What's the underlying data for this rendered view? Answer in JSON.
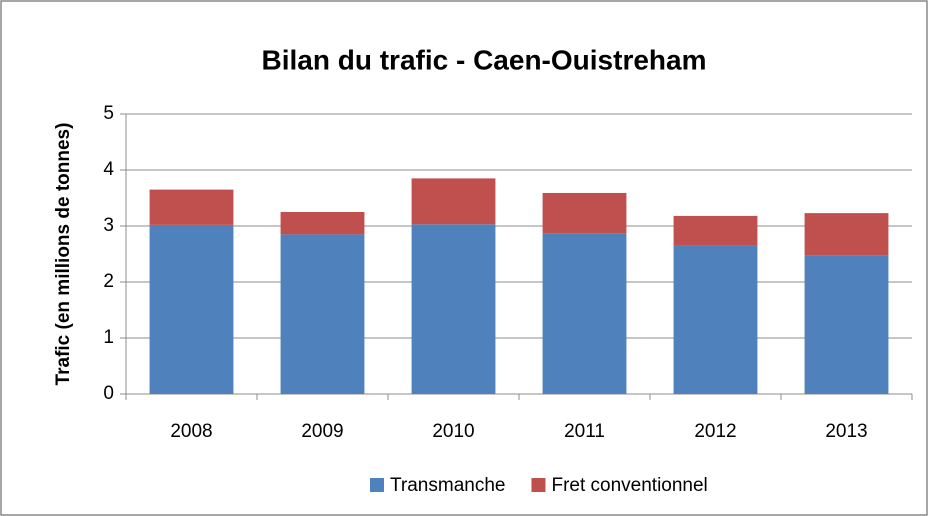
{
  "chart_data": {
    "type": "stacked_bar",
    "title": "Bilan du trafic - Caen-Ouistreham",
    "y_label": "Trafic (en millions de tonnes)",
    "categories": [
      "2008",
      "2009",
      "2010",
      "2011",
      "2012",
      "2013"
    ],
    "series": [
      {
        "name": "Transmanche",
        "color": "#4f81bd",
        "values": [
          3.02,
          2.85,
          3.03,
          2.87,
          2.65,
          2.48
        ]
      },
      {
        "name": "Fret conventionnel",
        "color": "#c0504d",
        "values": [
          0.63,
          0.4,
          0.82,
          0.72,
          0.53,
          0.75
        ]
      }
    ],
    "ylim": [
      0,
      5
    ],
    "yticks": [
      0,
      1,
      2,
      3,
      4,
      5
    ],
    "grid": true,
    "legend": "bottom"
  }
}
